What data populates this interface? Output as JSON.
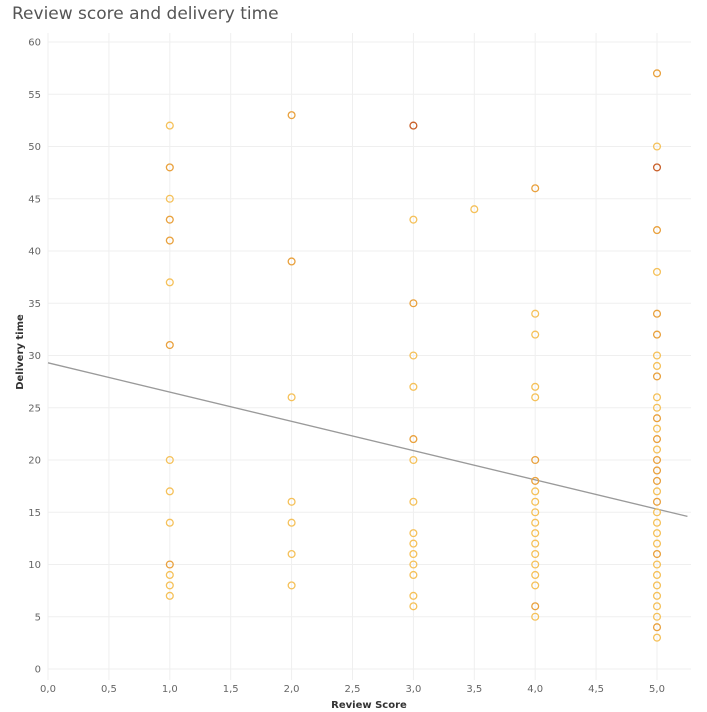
{
  "chart_data": {
    "type": "scatter",
    "title": "Review score and delivery time",
    "xlabel": "Review Score",
    "ylabel": "Delivery time",
    "xlim": [
      0,
      5.25
    ],
    "ylim": [
      0,
      61
    ],
    "xticks": [
      "0,0",
      "0,5",
      "1,0",
      "1,5",
      "2,0",
      "2,5",
      "3,0",
      "3,5",
      "4,0",
      "4,5",
      "5,0"
    ],
    "xtick_values": [
      0,
      0.5,
      1,
      1.5,
      2,
      2.5,
      3,
      3.5,
      4,
      4.5,
      5
    ],
    "yticks": [
      "0",
      "5",
      "10",
      "15",
      "20",
      "25",
      "30",
      "35",
      "40",
      "45",
      "50",
      "55",
      "60"
    ],
    "ytick_values": [
      0,
      5,
      10,
      15,
      20,
      25,
      30,
      35,
      40,
      45,
      50,
      55,
      60
    ],
    "grid": true,
    "trend_line": {
      "x": [
        0,
        5.25
      ],
      "y": [
        29.3,
        14.6
      ],
      "color": "#9a9a9a"
    },
    "colors": {
      "light": "#f5c15a",
      "medium": "#e9a13d",
      "dark": "#c9602a"
    },
    "points": [
      {
        "x": 1,
        "y": 52,
        "c": "light"
      },
      {
        "x": 1,
        "y": 48,
        "c": "medium"
      },
      {
        "x": 1,
        "y": 45,
        "c": "light"
      },
      {
        "x": 1,
        "y": 43,
        "c": "medium"
      },
      {
        "x": 1,
        "y": 41,
        "c": "medium"
      },
      {
        "x": 1,
        "y": 37,
        "c": "light"
      },
      {
        "x": 1,
        "y": 31,
        "c": "medium"
      },
      {
        "x": 1,
        "y": 20,
        "c": "light"
      },
      {
        "x": 1,
        "y": 17,
        "c": "light"
      },
      {
        "x": 1,
        "y": 14,
        "c": "light"
      },
      {
        "x": 1,
        "y": 10,
        "c": "medium"
      },
      {
        "x": 1,
        "y": 9,
        "c": "light"
      },
      {
        "x": 1,
        "y": 8,
        "c": "light"
      },
      {
        "x": 1,
        "y": 7,
        "c": "light"
      },
      {
        "x": 2,
        "y": 53,
        "c": "medium"
      },
      {
        "x": 2,
        "y": 39,
        "c": "medium"
      },
      {
        "x": 2,
        "y": 26,
        "c": "light"
      },
      {
        "x": 2,
        "y": 16,
        "c": "light"
      },
      {
        "x": 2,
        "y": 14,
        "c": "light"
      },
      {
        "x": 2,
        "y": 11,
        "c": "light"
      },
      {
        "x": 2,
        "y": 8,
        "c": "light"
      },
      {
        "x": 3,
        "y": 52,
        "c": "dark"
      },
      {
        "x": 3,
        "y": 43,
        "c": "light"
      },
      {
        "x": 3,
        "y": 35,
        "c": "medium"
      },
      {
        "x": 3,
        "y": 30,
        "c": "light"
      },
      {
        "x": 3,
        "y": 27,
        "c": "light"
      },
      {
        "x": 3,
        "y": 22,
        "c": "medium"
      },
      {
        "x": 3,
        "y": 20,
        "c": "light"
      },
      {
        "x": 3,
        "y": 16,
        "c": "light"
      },
      {
        "x": 3,
        "y": 13,
        "c": "light"
      },
      {
        "x": 3,
        "y": 12,
        "c": "light"
      },
      {
        "x": 3,
        "y": 11,
        "c": "light"
      },
      {
        "x": 3,
        "y": 10,
        "c": "light"
      },
      {
        "x": 3,
        "y": 9,
        "c": "light"
      },
      {
        "x": 3,
        "y": 7,
        "c": "light"
      },
      {
        "x": 3,
        "y": 6,
        "c": "light"
      },
      {
        "x": 3.5,
        "y": 44,
        "c": "light"
      },
      {
        "x": 4,
        "y": 46,
        "c": "medium"
      },
      {
        "x": 4,
        "y": 34,
        "c": "light"
      },
      {
        "x": 4,
        "y": 32,
        "c": "light"
      },
      {
        "x": 4,
        "y": 27,
        "c": "light"
      },
      {
        "x": 4,
        "y": 26,
        "c": "light"
      },
      {
        "x": 4,
        "y": 20,
        "c": "medium"
      },
      {
        "x": 4,
        "y": 18,
        "c": "medium"
      },
      {
        "x": 4,
        "y": 17,
        "c": "light"
      },
      {
        "x": 4,
        "y": 16,
        "c": "light"
      },
      {
        "x": 4,
        "y": 15,
        "c": "light"
      },
      {
        "x": 4,
        "y": 14,
        "c": "light"
      },
      {
        "x": 4,
        "y": 13,
        "c": "light"
      },
      {
        "x": 4,
        "y": 12,
        "c": "light"
      },
      {
        "x": 4,
        "y": 11,
        "c": "light"
      },
      {
        "x": 4,
        "y": 10,
        "c": "light"
      },
      {
        "x": 4,
        "y": 9,
        "c": "light"
      },
      {
        "x": 4,
        "y": 8,
        "c": "light"
      },
      {
        "x": 4,
        "y": 6,
        "c": "medium"
      },
      {
        "x": 4,
        "y": 5,
        "c": "light"
      },
      {
        "x": 5,
        "y": 57,
        "c": "medium"
      },
      {
        "x": 5,
        "y": 50,
        "c": "light"
      },
      {
        "x": 5,
        "y": 48,
        "c": "dark"
      },
      {
        "x": 5,
        "y": 42,
        "c": "medium"
      },
      {
        "x": 5,
        "y": 38,
        "c": "light"
      },
      {
        "x": 5,
        "y": 34,
        "c": "medium"
      },
      {
        "x": 5,
        "y": 32,
        "c": "medium"
      },
      {
        "x": 5,
        "y": 30,
        "c": "light"
      },
      {
        "x": 5,
        "y": 29,
        "c": "light"
      },
      {
        "x": 5,
        "y": 28,
        "c": "medium"
      },
      {
        "x": 5,
        "y": 26,
        "c": "light"
      },
      {
        "x": 5,
        "y": 25,
        "c": "light"
      },
      {
        "x": 5,
        "y": 24,
        "c": "medium"
      },
      {
        "x": 5,
        "y": 23,
        "c": "light"
      },
      {
        "x": 5,
        "y": 22,
        "c": "medium"
      },
      {
        "x": 5,
        "y": 21,
        "c": "light"
      },
      {
        "x": 5,
        "y": 20,
        "c": "medium"
      },
      {
        "x": 5,
        "y": 19,
        "c": "medium"
      },
      {
        "x": 5,
        "y": 18,
        "c": "medium"
      },
      {
        "x": 5,
        "y": 17,
        "c": "light"
      },
      {
        "x": 5,
        "y": 16,
        "c": "medium"
      },
      {
        "x": 5,
        "y": 15,
        "c": "light"
      },
      {
        "x": 5,
        "y": 14,
        "c": "light"
      },
      {
        "x": 5,
        "y": 13,
        "c": "light"
      },
      {
        "x": 5,
        "y": 12,
        "c": "light"
      },
      {
        "x": 5,
        "y": 11,
        "c": "medium"
      },
      {
        "x": 5,
        "y": 10,
        "c": "light"
      },
      {
        "x": 5,
        "y": 9,
        "c": "light"
      },
      {
        "x": 5,
        "y": 8,
        "c": "light"
      },
      {
        "x": 5,
        "y": 7,
        "c": "light"
      },
      {
        "x": 5,
        "y": 6,
        "c": "light"
      },
      {
        "x": 5,
        "y": 5,
        "c": "light"
      },
      {
        "x": 5,
        "y": 4,
        "c": "medium"
      },
      {
        "x": 5,
        "y": 3,
        "c": "light"
      }
    ]
  }
}
